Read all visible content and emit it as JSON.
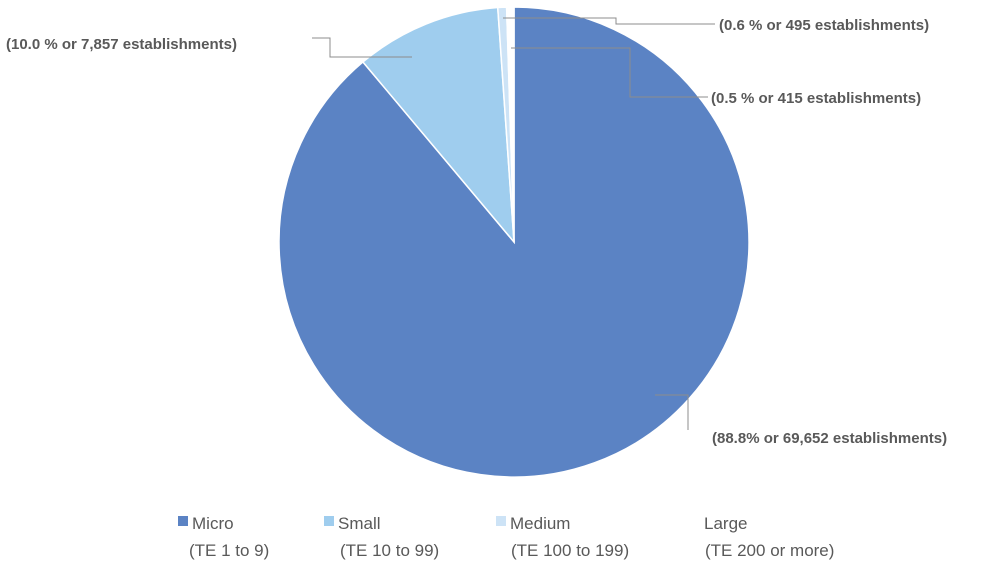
{
  "chart_data": {
    "type": "pie",
    "title": "",
    "slices": [
      {
        "name": "Micro",
        "range": "(TE  1 to 9)",
        "value": 88.8,
        "count": 69652,
        "label": "(88.8% or 69,652 establishments)",
        "color": "#5b83c4"
      },
      {
        "name": "Small",
        "range": "(TE  10 to 99)",
        "value": 10.0,
        "count": 7857,
        "label": "(10.0 % or 7,857 establishments)",
        "color": "#9fcdee"
      },
      {
        "name": "Medium",
        "range": "(TE  100 to 199)",
        "value": 0.6,
        "count": 495,
        "label": "(0.6 % or 495 establishments)",
        "color": "#cde3f6"
      },
      {
        "name": "Large",
        "range": "(TE  200 or more)",
        "value": 0.5,
        "count": 415,
        "label": "(0.5 % or 415 establishments)",
        "color": "#ffffff"
      }
    ],
    "start_angle": "12 o'clock",
    "direction": "clockwise",
    "legend_position": "bottom"
  }
}
